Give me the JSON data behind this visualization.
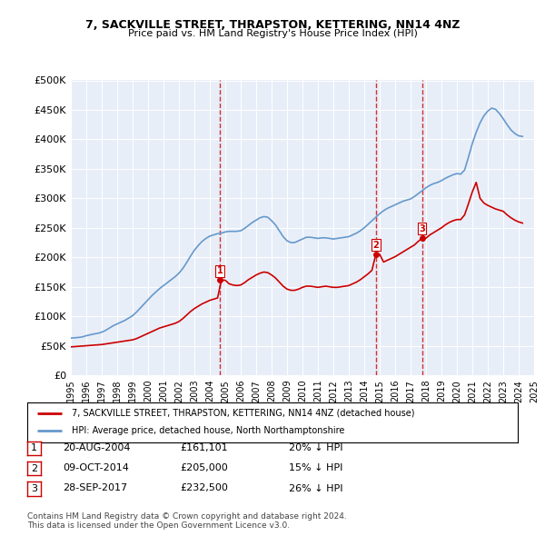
{
  "title": "7, SACKVILLE STREET, THRAPSTON, KETTERING, NN14 4NZ",
  "subtitle": "Price paid vs. HM Land Registry's House Price Index (HPI)",
  "ylabel_ticks": [
    "£0",
    "£50K",
    "£100K",
    "£150K",
    "£200K",
    "£250K",
    "£300K",
    "£350K",
    "£400K",
    "£450K",
    "£500K"
  ],
  "ytick_values": [
    0,
    50000,
    100000,
    150000,
    200000,
    250000,
    300000,
    350000,
    400000,
    450000,
    500000
  ],
  "ylim": [
    0,
    500000
  ],
  "hpi_color": "#6699cc",
  "price_color": "#cc0000",
  "vline_color": "#cc0000",
  "bg_color": "#e8eef8",
  "sale_dates": [
    2004.64,
    2014.77,
    2017.74
  ],
  "sale_prices": [
    161101,
    205000,
    232500
  ],
  "sale_labels": [
    "1",
    "2",
    "3"
  ],
  "legend_label_red": "7, SACKVILLE STREET, THRAPSTON, KETTERING, NN14 4NZ (detached house)",
  "legend_label_blue": "HPI: Average price, detached house, North Northamptonshire",
  "table_rows": [
    [
      "1",
      "20-AUG-2004",
      "£161,101",
      "20% ↓ HPI"
    ],
    [
      "2",
      "09-OCT-2014",
      "£205,000",
      "15% ↓ HPI"
    ],
    [
      "3",
      "28-SEP-2017",
      "£232,500",
      "26% ↓ HPI"
    ]
  ],
  "footnote": "Contains HM Land Registry data © Crown copyright and database right 2024.\nThis data is licensed under the Open Government Licence v3.0.",
  "hpi_x": [
    1995.0,
    1995.25,
    1995.5,
    1995.75,
    1996.0,
    1996.25,
    1996.5,
    1996.75,
    1997.0,
    1997.25,
    1997.5,
    1997.75,
    1998.0,
    1998.25,
    1998.5,
    1998.75,
    1999.0,
    1999.25,
    1999.5,
    1999.75,
    2000.0,
    2000.25,
    2000.5,
    2000.75,
    2001.0,
    2001.25,
    2001.5,
    2001.75,
    2002.0,
    2002.25,
    2002.5,
    2002.75,
    2003.0,
    2003.25,
    2003.5,
    2003.75,
    2004.0,
    2004.25,
    2004.5,
    2004.75,
    2005.0,
    2005.25,
    2005.5,
    2005.75,
    2006.0,
    2006.25,
    2006.5,
    2006.75,
    2007.0,
    2007.25,
    2007.5,
    2007.75,
    2008.0,
    2008.25,
    2008.5,
    2008.75,
    2009.0,
    2009.25,
    2009.5,
    2009.75,
    2010.0,
    2010.25,
    2010.5,
    2010.75,
    2011.0,
    2011.25,
    2011.5,
    2011.75,
    2012.0,
    2012.25,
    2012.5,
    2012.75,
    2013.0,
    2013.25,
    2013.5,
    2013.75,
    2014.0,
    2014.25,
    2014.5,
    2014.75,
    2015.0,
    2015.25,
    2015.5,
    2015.75,
    2016.0,
    2016.25,
    2016.5,
    2016.75,
    2017.0,
    2017.25,
    2017.5,
    2017.75,
    2018.0,
    2018.25,
    2018.5,
    2018.75,
    2019.0,
    2019.25,
    2019.5,
    2019.75,
    2020.0,
    2020.25,
    2020.5,
    2020.75,
    2021.0,
    2021.25,
    2021.5,
    2021.75,
    2022.0,
    2022.25,
    2022.5,
    2022.75,
    2023.0,
    2023.25,
    2023.5,
    2023.75,
    2024.0,
    2024.25
  ],
  "hpi_y": [
    63000,
    63500,
    64000,
    65000,
    67000,
    68500,
    70000,
    71000,
    73000,
    76000,
    80000,
    84000,
    87000,
    90000,
    93000,
    97000,
    101000,
    107000,
    114000,
    121000,
    128000,
    135000,
    141000,
    147000,
    152000,
    157000,
    162000,
    167000,
    173000,
    181000,
    191000,
    202000,
    212000,
    220000,
    227000,
    232000,
    236000,
    238000,
    240000,
    241000,
    243000,
    244000,
    244000,
    244000,
    245000,
    249000,
    254000,
    259000,
    263000,
    267000,
    269000,
    268000,
    262000,
    255000,
    245000,
    235000,
    228000,
    225000,
    225000,
    228000,
    231000,
    234000,
    234000,
    233000,
    232000,
    233000,
    233000,
    232000,
    231000,
    232000,
    233000,
    234000,
    235000,
    238000,
    241000,
    245000,
    250000,
    256000,
    262000,
    268000,
    274000,
    279000,
    283000,
    286000,
    289000,
    292000,
    295000,
    297000,
    299000,
    303000,
    308000,
    313000,
    318000,
    322000,
    325000,
    327000,
    330000,
    334000,
    337000,
    340000,
    342000,
    341000,
    348000,
    370000,
    393000,
    412000,
    428000,
    440000,
    448000,
    453000,
    451000,
    444000,
    435000,
    425000,
    416000,
    410000,
    406000,
    405000
  ],
  "price_x": [
    1995.0,
    1995.25,
    1995.5,
    1995.75,
    1996.0,
    1996.25,
    1996.5,
    1996.75,
    1997.0,
    1997.25,
    1997.5,
    1997.75,
    1998.0,
    1998.25,
    1998.5,
    1998.75,
    1999.0,
    1999.25,
    1999.5,
    1999.75,
    2000.0,
    2000.25,
    2000.5,
    2000.75,
    2001.0,
    2001.25,
    2001.5,
    2001.75,
    2002.0,
    2002.25,
    2002.5,
    2002.75,
    2003.0,
    2003.25,
    2003.5,
    2003.75,
    2004.0,
    2004.25,
    2004.5,
    2004.75,
    2005.0,
    2005.25,
    2005.5,
    2005.75,
    2006.0,
    2006.25,
    2006.5,
    2006.75,
    2007.0,
    2007.25,
    2007.5,
    2007.75,
    2008.0,
    2008.25,
    2008.5,
    2008.75,
    2009.0,
    2009.25,
    2009.5,
    2009.75,
    2010.0,
    2010.25,
    2010.5,
    2010.75,
    2011.0,
    2011.25,
    2011.5,
    2011.75,
    2012.0,
    2012.25,
    2012.5,
    2012.75,
    2013.0,
    2013.25,
    2013.5,
    2013.75,
    2014.0,
    2014.25,
    2014.5,
    2014.75,
    2015.0,
    2015.25,
    2015.5,
    2015.75,
    2016.0,
    2016.25,
    2016.5,
    2016.75,
    2017.0,
    2017.25,
    2017.5,
    2017.75,
    2018.0,
    2018.25,
    2018.5,
    2018.75,
    2019.0,
    2019.25,
    2019.5,
    2019.75,
    2020.0,
    2020.25,
    2020.5,
    2020.75,
    2021.0,
    2021.25,
    2021.5,
    2021.75,
    2022.0,
    2022.25,
    2022.5,
    2022.75,
    2023.0,
    2023.25,
    2023.5,
    2023.75,
    2024.0,
    2024.25
  ],
  "price_y": [
    48000,
    48500,
    49000,
    49500,
    50000,
    50500,
    51000,
    51500,
    52000,
    53000,
    54000,
    55000,
    56000,
    57000,
    58000,
    59000,
    60000,
    62000,
    65000,
    68000,
    71000,
    74000,
    77000,
    80000,
    82000,
    84000,
    86000,
    88000,
    91000,
    96000,
    102000,
    108000,
    113000,
    117000,
    121000,
    124000,
    127000,
    129000,
    131000,
    161101,
    161101,
    155000,
    153000,
    152000,
    153000,
    157000,
    162000,
    166000,
    170000,
    173000,
    175000,
    174000,
    170000,
    165000,
    158000,
    151000,
    146000,
    144000,
    144000,
    146000,
    149000,
    151000,
    151000,
    150000,
    149000,
    150000,
    151000,
    150000,
    149000,
    149000,
    150000,
    151000,
    152000,
    155000,
    158000,
    162000,
    167000,
    172000,
    178000,
    205000,
    205000,
    192000,
    195000,
    198000,
    201000,
    205000,
    209000,
    213000,
    217000,
    221000,
    227000,
    232500,
    232500,
    238000,
    242000,
    246000,
    250000,
    255000,
    259000,
    262000,
    264000,
    264000,
    272000,
    291000,
    311000,
    327000,
    300000,
    292000,
    288000,
    285000,
    282000,
    280000,
    278000,
    272000,
    267000,
    263000,
    260000,
    258000
  ],
  "xtick_years": [
    1995,
    1996,
    1997,
    1998,
    1999,
    2000,
    2001,
    2002,
    2003,
    2004,
    2005,
    2006,
    2007,
    2008,
    2009,
    2010,
    2011,
    2012,
    2013,
    2014,
    2015,
    2016,
    2017,
    2018,
    2019,
    2020,
    2021,
    2022,
    2023,
    2024,
    2025
  ]
}
